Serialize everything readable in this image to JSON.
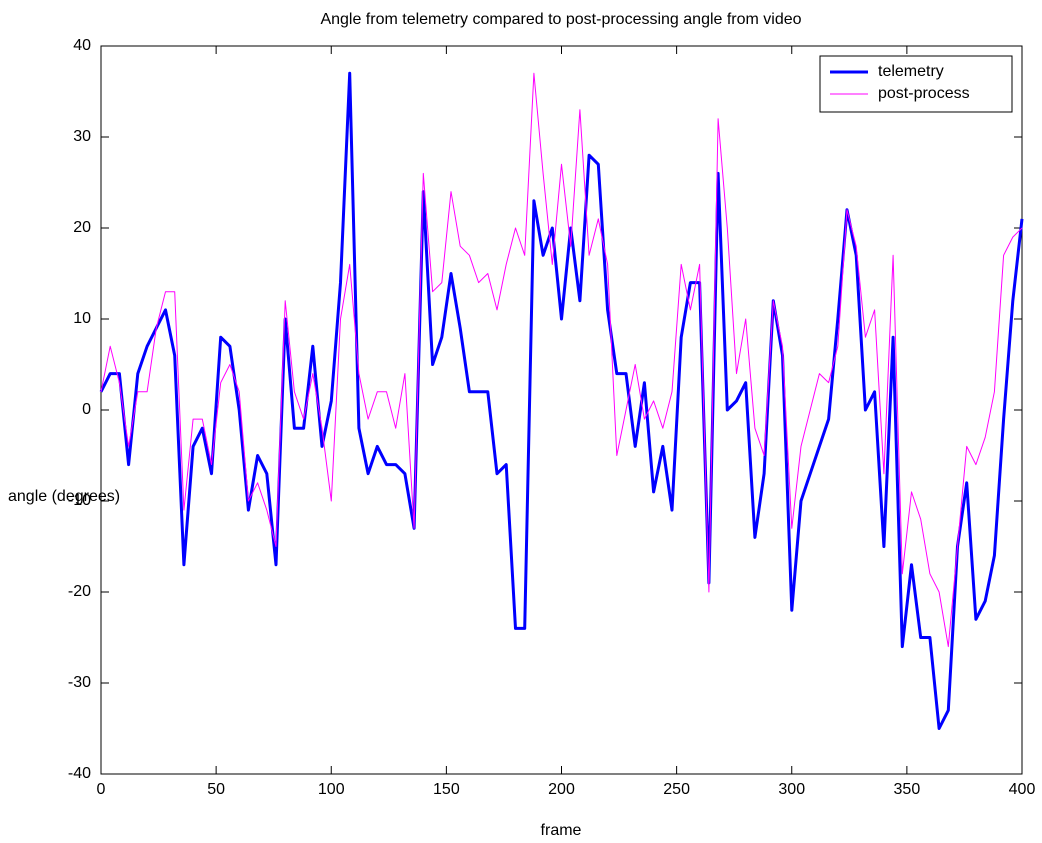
{
  "chart_data": {
    "type": "line",
    "title": "Angle from telemetry compared to post-processing angle from video",
    "x_label": "frame",
    "y_label": "angle (degrees)",
    "x": [
      0,
      4,
      8,
      12,
      16,
      20,
      24,
      28,
      32,
      36,
      40,
      44,
      48,
      52,
      56,
      60,
      64,
      68,
      72,
      76,
      80,
      84,
      88,
      92,
      96,
      100,
      104,
      108,
      112,
      116,
      120,
      124,
      128,
      132,
      136,
      140,
      144,
      148,
      152,
      156,
      160,
      164,
      168,
      172,
      176,
      180,
      184,
      188,
      192,
      196,
      200,
      204,
      208,
      212,
      216,
      220,
      224,
      228,
      232,
      236,
      240,
      244,
      248,
      252,
      256,
      260,
      264,
      268,
      272,
      276,
      280,
      284,
      288,
      292,
      296,
      300,
      304,
      308,
      312,
      316,
      320,
      324,
      328,
      332,
      336,
      340,
      344,
      348,
      352,
      356,
      360,
      364,
      368,
      372,
      376,
      380,
      384,
      388,
      392,
      396,
      400
    ],
    "series": [
      {
        "name": "telemetry",
        "color": "#0000ff",
        "width": 3,
        "values": [
          2,
          4,
          4,
          -6,
          4,
          7,
          9,
          11,
          6,
          -17,
          -4,
          -2,
          -7,
          8,
          7,
          0,
          -11,
          -5,
          -7,
          -17,
          10,
          -2,
          -2,
          7,
          -4,
          1,
          14,
          37,
          -2,
          -7,
          -4,
          -6,
          -6,
          -7,
          -13,
          24,
          5,
          8,
          15,
          9,
          2,
          2,
          2,
          -7,
          -6,
          -24,
          -24,
          23,
          17,
          20,
          10,
          20,
          12,
          28,
          27,
          11,
          4,
          4,
          -4,
          3,
          -9,
          -4,
          -11,
          8,
          14,
          14,
          -19,
          26,
          0,
          1,
          3,
          -14,
          -7,
          12,
          6,
          -22,
          -10,
          -7,
          -4,
          -1,
          10,
          22,
          17,
          0,
          2,
          -15,
          8,
          -26,
          -17,
          -25,
          -25,
          -35,
          -33,
          -15,
          -8,
          -23,
          -21,
          -16,
          -1,
          12,
          21
        ]
      },
      {
        "name": "post-process",
        "color": "#ff00ff",
        "width": 1,
        "values": [
          2,
          7,
          3,
          -4,
          2,
          2,
          9,
          13,
          13,
          -11,
          -1,
          -1,
          -6,
          3,
          5,
          2,
          -10,
          -8,
          -11,
          -15,
          12,
          2,
          -1,
          4,
          -2,
          -10,
          10,
          16,
          4,
          -1,
          2,
          2,
          -2,
          4,
          -13,
          26,
          13,
          14,
          24,
          18,
          17,
          14,
          15,
          11,
          16,
          20,
          17,
          37,
          26,
          16,
          27,
          18,
          33,
          17,
          21,
          16,
          -5,
          0,
          5,
          -1,
          1,
          -2,
          2,
          16,
          11,
          16,
          -20,
          32,
          20,
          4,
          10,
          -2,
          -5,
          12,
          7,
          -13,
          -4,
          0,
          4,
          3,
          7,
          22,
          18,
          8,
          11,
          -7,
          17,
          -18,
          -9,
          -12,
          -18,
          -20,
          -26,
          -15,
          -4,
          -6,
          -3,
          2,
          17,
          19,
          20
        ]
      }
    ],
    "xlim": [
      0,
      400
    ],
    "ylim": [
      -40,
      40
    ],
    "xticks": [
      0,
      50,
      100,
      150,
      200,
      250,
      300,
      350,
      400
    ],
    "yticks": [
      -40,
      -30,
      -20,
      -10,
      0,
      10,
      20,
      30,
      40
    ],
    "legend": "upper right"
  }
}
